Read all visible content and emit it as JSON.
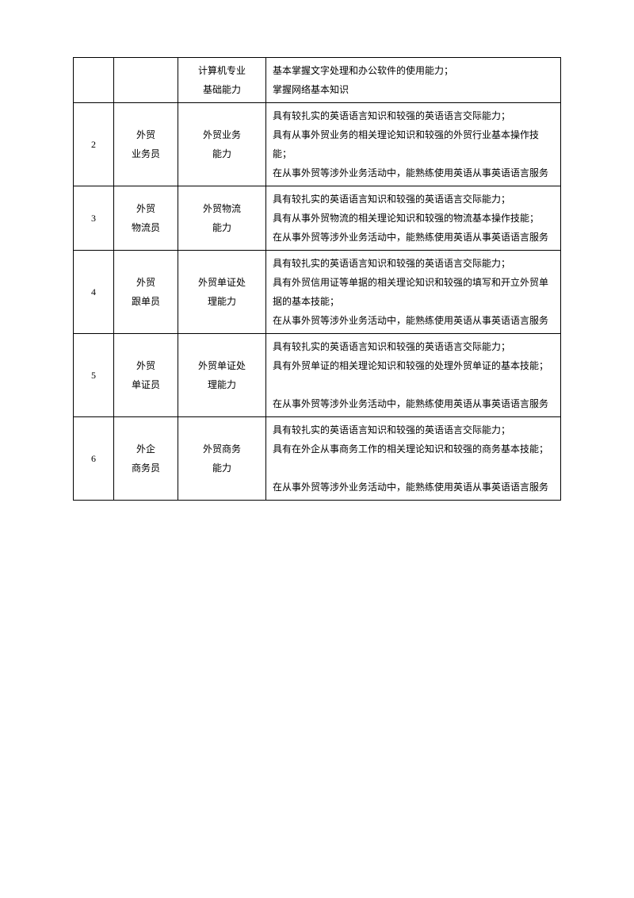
{
  "colors": {
    "background": "#ffffff",
    "text": "#000000",
    "border": "#000000"
  },
  "typography": {
    "font_family": "SimSun",
    "font_size_pt": 9,
    "line_height": 2.0
  },
  "table": {
    "rows": [
      {
        "num": "",
        "role_lines": [
          "",
          ""
        ],
        "skill_lines": [
          "计算机专业",
          "基础能力"
        ],
        "desc_lines": [
          "基本掌握文字处理和办公软件的使用能力；",
          "掌握网络基本知识"
        ]
      },
      {
        "num": "2",
        "role_lines": [
          "外贸",
          "业务员"
        ],
        "skill_lines": [
          "外贸业务",
          "能力"
        ],
        "desc_lines": [
          "具有较扎实的英语语言知识和较强的英语语言交际能力；",
          "具有从事外贸业务的相关理论知识和较强的外贸行业基本操作技能；",
          "在从事外贸等涉外业务活动中，能熟练使用英语从事英语语言服务"
        ]
      },
      {
        "num": "3",
        "role_lines": [
          "外贸",
          "物流员"
        ],
        "skill_lines": [
          "外贸物流",
          "能力"
        ],
        "desc_lines": [
          "具有较扎实的英语语言知识和较强的英语语言交际能力；",
          "具有从事外贸物流的相关理论知识和较强的物流基本操作技能；",
          "在从事外贸等涉外业务活动中，能熟练使用英语从事英语语言服务"
        ]
      },
      {
        "num": "4",
        "role_lines": [
          "外贸",
          "跟单员"
        ],
        "skill_lines": [
          "外贸单证处",
          "理能力"
        ],
        "desc_lines": [
          "具有较扎实的英语语言知识和较强的英语语言交际能力；",
          "具有外贸信用证等单据的相关理论知识和较强的填写和开立外贸单据的基本技能；",
          "在从事外贸等涉外业务活动中，能熟练使用英语从事英语语言服务"
        ]
      },
      {
        "num": "5",
        "role_lines": [
          "外贸",
          "单证员"
        ],
        "skill_lines": [
          "外贸单证处",
          "理能力"
        ],
        "desc_lines": [
          "具有较扎实的英语语言知识和较强的英语语言交际能力；",
          "具有外贸单证的相关理论知识和较强的处理外贸单证的基本技能；",
          "",
          "在从事外贸等涉外业务活动中，能熟练使用英语从事英语语言服务"
        ]
      },
      {
        "num": "6",
        "role_lines": [
          "外企",
          "商务员"
        ],
        "skill_lines": [
          "外贸商务",
          "能力"
        ],
        "desc_lines": [
          "具有较扎实的英语语言知识和较强的英语语言交际能力；",
          "具有在外企从事商务工作的相关理论知识和较强的商务基本技能；",
          "",
          "在从事外贸等涉外业务活动中，能熟练使用英语从事英语语言服务"
        ]
      }
    ]
  }
}
